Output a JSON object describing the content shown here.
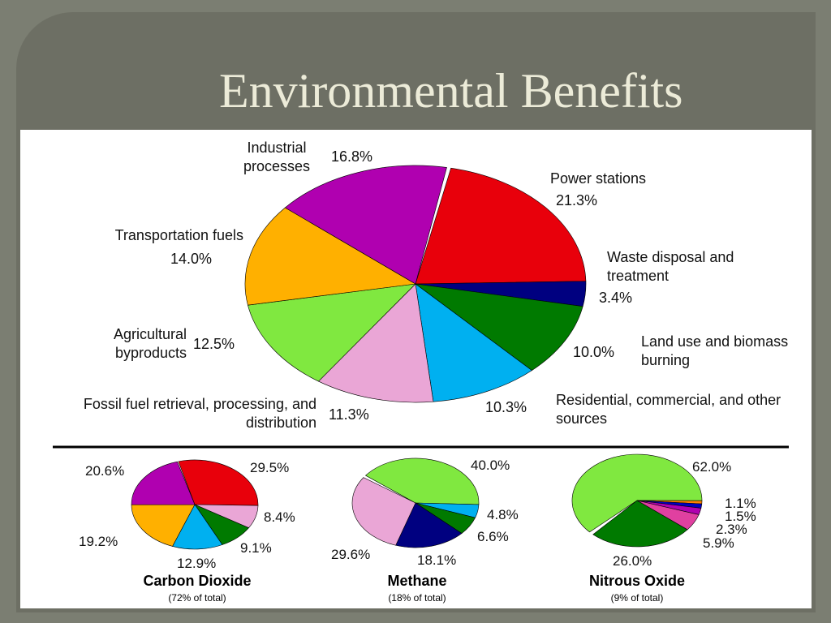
{
  "slide_title": "Environmental Benefits",
  "chart_data": [
    {
      "type": "pie",
      "categories": [
        "Power stations",
        "Waste disposal and treatment",
        "Land use and biomass burning",
        "Residential, commercial, and other sources",
        "Fossil fuel retrieval, processing, and distribution",
        "Agricultural byproducts",
        "Transportation fuels",
        "Industrial processes"
      ],
      "values": [
        21.3,
        3.4,
        10.0,
        10.3,
        11.3,
        12.5,
        14.0,
        16.8
      ],
      "value_labels": [
        "21.3%",
        "3.4%",
        "10.0%",
        "10.3%",
        "11.3%",
        "12.5%",
        "14.0%",
        "16.8%"
      ],
      "colors": [
        "#e8000b",
        "#000080",
        "#007a00",
        "#00b0f0",
        "#eaa6d6",
        "#80e840",
        "#ffb000",
        "#b000b0"
      ]
    },
    {
      "type": "pie",
      "title": "Carbon Dioxide",
      "subtitle": "(72% of total)",
      "values": [
        29.5,
        8.4,
        9.1,
        12.9,
        19.2,
        20.6
      ],
      "value_labels": [
        "29.5%",
        "8.4%",
        "9.1%",
        "12.9%",
        "19.2%",
        "20.6%"
      ],
      "colors": [
        "#e8000b",
        "#eaa6d6",
        "#007a00",
        "#00b0f0",
        "#ffb000",
        "#b000b0"
      ]
    },
    {
      "type": "pie",
      "title": "Methane",
      "subtitle": "(18% of total)",
      "values": [
        40.0,
        4.8,
        6.6,
        18.1,
        29.6
      ],
      "value_labels": [
        "40.0%",
        "4.8%",
        "6.6%",
        "18.1%",
        "29.6%"
      ],
      "colors": [
        "#80e840",
        "#00b0f0",
        "#007a00",
        "#000080",
        "#eaa6d6"
      ]
    },
    {
      "type": "pie",
      "title": "Nitrous Oxide",
      "subtitle": "(9% of total)",
      "values": [
        62.0,
        1.1,
        1.5,
        2.3,
        5.9,
        26.0
      ],
      "value_labels": [
        "62.0%",
        "1.1%",
        "1.5%",
        "2.3%",
        "5.9%",
        "26.0%"
      ],
      "colors": [
        "#80e840",
        "#ff8000",
        "#0000c0",
        "#b000b0",
        "#e040a0",
        "#007a00"
      ]
    }
  ]
}
